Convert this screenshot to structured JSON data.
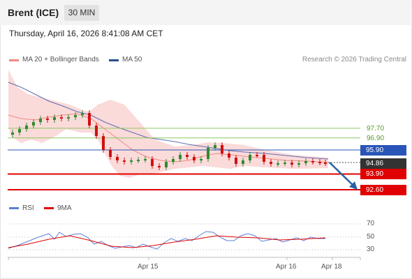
{
  "header": {
    "instrument": "Brent (ICE)",
    "timeframe": "30 MIN"
  },
  "datetime": "Thursday, April 16, 2026 8:41:08 AM CET",
  "legend": {
    "ma20": "MA 20 + Bollinger Bands",
    "ma50": "MA 50",
    "copyright": "Research © 2026 Trading Central"
  },
  "levels": {
    "r2": "97.70",
    "r1": "96.90",
    "pivot": "95.90",
    "last": "94.86",
    "s1": "93.90",
    "s2": "92.60"
  },
  "rsi_panel": {
    "rsi_label": "RSI",
    "ma_label": "9MA",
    "ticks": [
      "70",
      "50",
      "30"
    ]
  },
  "x_axis": {
    "labels": [
      "Apr 15",
      "Apr 16",
      "Apr 18"
    ]
  },
  "colors": {
    "ma20": "#f08a80",
    "ma50": "#5a6fb0",
    "bands": "#fbdada",
    "up": "#2e8b2e",
    "down": "#d01010",
    "resistance": "#8cc860",
    "pivot": "#2955b8",
    "support": "#e00000",
    "arrow": "#2860a8",
    "rsi": "#5b7fd6",
    "rsi_ma": "#e00000"
  }
}
